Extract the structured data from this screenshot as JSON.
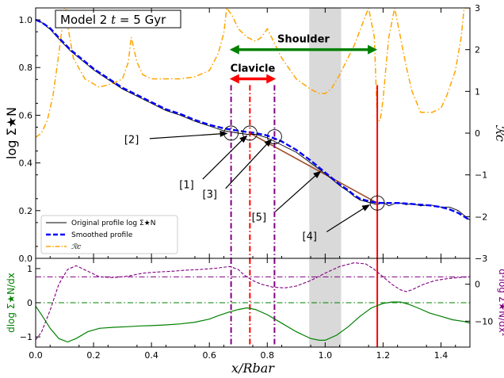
{
  "chart_data": [
    {
      "type": "line",
      "panel": "top",
      "title_box": "Model 2 t = 5 Gyr",
      "title_prefix": "Model 2 ",
      "title_t": "t",
      "title_suffix": " = 5 Gyr",
      "ylabel_left": "log Σ★N",
      "ylabel_right": "ℛc",
      "ylim_left": [
        0.0,
        1.05
      ],
      "ylim_right": [
        -3,
        3
      ],
      "xlim": [
        0.0,
        1.5
      ],
      "xticks": [
        "0.0",
        "0.2",
        "0.4",
        "0.6",
        "0.8",
        "1.0",
        "1.2",
        "1.4"
      ],
      "yticks_left": [
        "0.0",
        "0.2",
        "0.4",
        "0.6",
        "0.8",
        "1.0"
      ],
      "yticks_right": [
        "−3",
        "−2",
        "−1",
        "0",
        "1",
        "2",
        "3"
      ],
      "colors": {
        "original": "#000000",
        "smoothed": "#0000ff",
        "rc": "#ffa500",
        "fit": "#a0522d",
        "purple": "#800080",
        "red": "#ff0000",
        "green": "#008000",
        "band": "#d9d9d9"
      },
      "series": [
        {
          "name": "Original profile log Σ★N",
          "style": "solid thin black",
          "x": [
            0.0,
            0.02,
            0.05,
            0.08,
            0.12,
            0.16,
            0.2,
            0.25,
            0.3,
            0.35,
            0.4,
            0.45,
            0.5,
            0.55,
            0.6,
            0.65,
            0.7,
            0.73,
            0.76,
            0.8,
            0.85,
            0.9,
            0.95,
            1.0,
            1.05,
            1.08,
            1.1,
            1.12,
            1.15,
            1.18,
            1.2,
            1.22,
            1.25,
            1.28,
            1.3,
            1.33,
            1.36,
            1.4,
            1.43,
            1.46,
            1.48,
            1.5
          ],
          "y": [
            1.0,
            0.99,
            0.96,
            0.92,
            0.87,
            0.83,
            0.79,
            0.75,
            0.71,
            0.68,
            0.65,
            0.62,
            0.6,
            0.575,
            0.555,
            0.535,
            0.525,
            0.52,
            0.52,
            0.505,
            0.475,
            0.445,
            0.4,
            0.355,
            0.305,
            0.28,
            0.26,
            0.245,
            0.235,
            0.225,
            0.235,
            0.22,
            0.235,
            0.225,
            0.23,
            0.22,
            0.225,
            0.215,
            0.215,
            0.2,
            0.18,
            0.16
          ]
        },
        {
          "name": "Smoothed profile",
          "style": "dashed thick blue",
          "x": [
            0.0,
            0.02,
            0.05,
            0.08,
            0.12,
            0.16,
            0.2,
            0.25,
            0.3,
            0.35,
            0.4,
            0.45,
            0.5,
            0.55,
            0.6,
            0.65,
            0.7,
            0.73,
            0.76,
            0.8,
            0.85,
            0.9,
            0.95,
            1.0,
            1.05,
            1.08,
            1.1,
            1.12,
            1.15,
            1.18,
            1.2,
            1.22,
            1.25,
            1.28,
            1.3,
            1.33,
            1.36,
            1.4,
            1.43,
            1.46,
            1.48,
            1.5
          ],
          "y": [
            1.0,
            0.99,
            0.965,
            0.925,
            0.875,
            0.835,
            0.795,
            0.755,
            0.715,
            0.685,
            0.655,
            0.625,
            0.605,
            0.58,
            0.56,
            0.545,
            0.535,
            0.53,
            0.525,
            0.515,
            0.49,
            0.455,
            0.41,
            0.36,
            0.31,
            0.285,
            0.265,
            0.25,
            0.24,
            0.233,
            0.232,
            0.232,
            0.232,
            0.23,
            0.228,
            0.225,
            0.222,
            0.215,
            0.205,
            0.19,
            0.175,
            0.16
          ]
        },
        {
          "name": "ℛc",
          "axis": "right",
          "style": "dashdot orange",
          "x": [
            0.0,
            0.02,
            0.04,
            0.06,
            0.08,
            0.1,
            0.105,
            0.11,
            0.13,
            0.17,
            0.22,
            0.27,
            0.3,
            0.32,
            0.33,
            0.35,
            0.37,
            0.4,
            0.45,
            0.5,
            0.55,
            0.6,
            0.63,
            0.65,
            0.66,
            0.68,
            0.7,
            0.73,
            0.76,
            0.78,
            0.8,
            0.85,
            0.9,
            0.95,
            0.98,
            1.0,
            1.02,
            1.05,
            1.1,
            1.15,
            1.17,
            1.18,
            1.19,
            1.2,
            1.21,
            1.22,
            1.24,
            1.26,
            1.28,
            1.3,
            1.33,
            1.37,
            1.4,
            1.42,
            1.45,
            1.47,
            1.48,
            1.5
          ],
          "y": [
            -0.1,
            0.0,
            0.3,
            0.9,
            1.9,
            3.0,
            3.0,
            2.6,
            1.8,
            1.3,
            1.1,
            1.2,
            1.3,
            1.7,
            2.3,
            1.7,
            1.4,
            1.3,
            1.3,
            1.3,
            1.35,
            1.5,
            1.9,
            2.4,
            3.0,
            2.8,
            2.5,
            2.3,
            2.2,
            2.3,
            2.5,
            1.8,
            1.3,
            1.05,
            0.95,
            0.95,
            1.05,
            1.4,
            2.1,
            3.0,
            2.3,
            0.3,
            0.3,
            0.8,
            1.6,
            2.3,
            3.0,
            2.3,
            1.6,
            1.0,
            0.5,
            0.5,
            0.6,
            0.9,
            1.5,
            2.3,
            3.0,
            3.0
          ]
        },
        {
          "name": "linear fit",
          "style": "solid sienna",
          "x": [
            0.74,
            1.18
          ],
          "y": [
            0.525,
            0.232
          ]
        }
      ],
      "vlines": [
        {
          "x": 0.675,
          "color": "purple",
          "style": "dashdot",
          "y_top_right": 1.15
        },
        {
          "x": 0.825,
          "color": "purple",
          "style": "dashdot",
          "y_top_right": 1.15
        },
        {
          "x": 0.74,
          "color": "red",
          "style": "dashdot",
          "y_top_right": 1.15
        },
        {
          "x": 1.18,
          "color": "red",
          "style": "solid",
          "y_top_right": 1.15
        }
      ],
      "band": {
        "x0": 0.945,
        "x1": 1.055
      },
      "circles": [
        {
          "x": 0.675,
          "y": 0.525
        },
        {
          "x": 0.74,
          "y": 0.525
        },
        {
          "x": 0.825,
          "y": 0.51
        },
        {
          "x": 1.18,
          "y": 0.232
        }
      ],
      "arrows_h": [
        {
          "label": "Shoulder",
          "x0": 0.67,
          "x1": 1.18,
          "y_right": 2.0,
          "color": "green",
          "label_x": 0.925,
          "label_y_right": 2.25
        },
        {
          "label": "Clavicle",
          "x0": 0.67,
          "x1": 0.83,
          "y_right": 1.3,
          "color": "red",
          "label_x": 0.75,
          "label_y_right": 1.55
        }
      ],
      "annotations": [
        {
          "text": "[2]",
          "tx": 0.35,
          "ty": 0.5,
          "ax": 0.675,
          "ay": 0.525
        },
        {
          "text": "[1]",
          "tx": 0.54,
          "ty": 0.31,
          "ax": 0.74,
          "ay": 0.525
        },
        {
          "text": "[3]",
          "tx": 0.62,
          "ty": 0.27,
          "ax": 0.825,
          "ay": 0.51
        },
        {
          "text": "[5]",
          "tx": 0.79,
          "ty": 0.175,
          "ax": 0.995,
          "ay": 0.375
        },
        {
          "text": "[4]",
          "tx": 0.965,
          "ty": 0.095,
          "ax": 1.165,
          "ay": 0.232
        }
      ],
      "legend": {
        "placement": "lower-left",
        "entries": [
          "Original profile log Σ★N",
          "Smoothed profile",
          "ℛc"
        ]
      }
    },
    {
      "type": "line",
      "panel": "bottom",
      "xlabel": "x/Rbar",
      "ylabel_left": "dlog Σ★N/dx",
      "ylabel_right": "d²log Σ★N/dx²",
      "ylim_left": [
        -1.3,
        1.3
      ],
      "ylim_right": [
        -17,
        7
      ],
      "yticks_left": [
        "−1",
        "0",
        "1"
      ],
      "yticks_right": [
        "−10",
        "0"
      ],
      "hlines": [
        {
          "axis": "left",
          "y": 0.0,
          "color": "green",
          "style": "dashdot"
        },
        {
          "axis": "right",
          "y": 2.0,
          "color": "purple",
          "style": "dashdot"
        }
      ],
      "series": [
        {
          "name": "first derivative",
          "axis": "left",
          "style": "solid green",
          "x": [
            0.0,
            0.02,
            0.05,
            0.08,
            0.11,
            0.14,
            0.18,
            0.22,
            0.27,
            0.32,
            0.36,
            0.4,
            0.45,
            0.5,
            0.55,
            0.6,
            0.63,
            0.67,
            0.7,
            0.73,
            0.76,
            0.8,
            0.85,
            0.9,
            0.95,
            0.98,
            1.0,
            1.04,
            1.08,
            1.12,
            1.16,
            1.2,
            1.23,
            1.26,
            1.29,
            1.32,
            1.36,
            1.4,
            1.44,
            1.48,
            1.5
          ],
          "y": [
            -0.1,
            -0.35,
            -0.75,
            -1.05,
            -1.15,
            -1.05,
            -0.85,
            -0.75,
            -0.72,
            -0.7,
            -0.68,
            -0.67,
            -0.65,
            -0.62,
            -0.57,
            -0.48,
            -0.38,
            -0.27,
            -0.2,
            -0.15,
            -0.2,
            -0.35,
            -0.6,
            -0.85,
            -1.05,
            -1.1,
            -1.1,
            -0.95,
            -0.7,
            -0.4,
            -0.15,
            -0.02,
            0.02,
            0.02,
            -0.05,
            -0.15,
            -0.3,
            -0.4,
            -0.5,
            -0.55,
            -0.6
          ]
        },
        {
          "name": "second derivative",
          "axis": "right",
          "style": "dashed purple",
          "x": [
            0.0,
            0.02,
            0.05,
            0.08,
            0.11,
            0.14,
            0.18,
            0.22,
            0.27,
            0.32,
            0.37,
            0.42,
            0.47,
            0.52,
            0.57,
            0.62,
            0.67,
            0.7,
            0.72,
            0.75,
            0.78,
            0.82,
            0.86,
            0.9,
            0.95,
            1.0,
            1.05,
            1.1,
            1.14,
            1.17,
            1.2,
            1.23,
            1.26,
            1.28,
            1.3,
            1.34,
            1.38,
            1.42,
            1.46,
            1.5
          ],
          "y": [
            -15.0,
            -13.0,
            -7.0,
            0.0,
            4.0,
            5.0,
            3.5,
            2.0,
            1.8,
            2.2,
            3.0,
            3.3,
            3.5,
            3.8,
            4.0,
            4.3,
            4.8,
            4.0,
            2.5,
            1.0,
            0.0,
            -0.8,
            -1.0,
            -0.5,
            1.0,
            3.0,
            4.8,
            5.8,
            5.5,
            4.0,
            2.0,
            0.0,
            -1.5,
            -2.0,
            -1.5,
            0.0,
            1.0,
            1.5,
            1.8,
            2.0
          ]
        }
      ],
      "vlines": [
        {
          "x": 0.675,
          "color": "purple",
          "style": "dashdot"
        },
        {
          "x": 0.825,
          "color": "purple",
          "style": "dashdot"
        },
        {
          "x": 0.74,
          "color": "red",
          "style": "dashdot"
        },
        {
          "x": 1.18,
          "color": "red",
          "style": "solid"
        }
      ],
      "band": {
        "x0": 0.945,
        "x1": 1.055
      }
    }
  ]
}
